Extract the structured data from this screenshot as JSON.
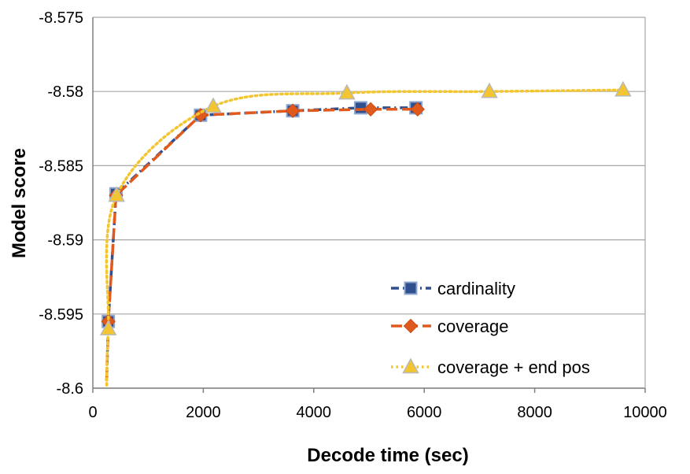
{
  "chart_data": {
    "type": "line",
    "title": "",
    "xlabel": "Decode time (sec)",
    "ylabel": "Model score",
    "xlim": [
      0,
      10000
    ],
    "ylim": [
      -8.6,
      -8.575
    ],
    "xticks": [
      0,
      2000,
      4000,
      6000,
      8000,
      10000
    ],
    "xtick_labels": [
      "0",
      "2000",
      "4000",
      "6000",
      "8000",
      "10000"
    ],
    "yticks": [
      -8.575,
      -8.58,
      -8.585,
      -8.59,
      -8.595,
      -8.6
    ],
    "ytick_labels": [
      "-8.575",
      "-8.58",
      "-8.585",
      "-8.59",
      "-8.595",
      "-8.6"
    ],
    "grid": "horizontal",
    "legend_position": "bottom-right",
    "series": [
      {
        "name": "cardinality",
        "color": "#2F4F8F",
        "marker": "square",
        "line_style": "dash-dot",
        "points": [
          [
            250,
            -8.5995
          ],
          [
            280,
            -8.5955
          ],
          [
            420,
            -8.5869
          ],
          [
            1950,
            -8.5816
          ],
          [
            3620,
            -8.5813
          ],
          [
            4850,
            -8.5811
          ],
          [
            5850,
            -8.5811
          ]
        ]
      },
      {
        "name": "coverage",
        "color": "#E05A1E",
        "marker": "diamond",
        "line_style": "long-dash",
        "points": [
          [
            250,
            -8.5995
          ],
          [
            280,
            -8.5955
          ],
          [
            420,
            -8.587
          ],
          [
            1950,
            -8.5816
          ],
          [
            3620,
            -8.5813
          ],
          [
            5030,
            -8.5812
          ],
          [
            5880,
            -8.5812
          ]
        ]
      },
      {
        "name": "coverage + end pos",
        "color": "#F2C531",
        "marker": "triangle",
        "line_style": "dotted",
        "points": [
          [
            250,
            -8.5998
          ],
          [
            280,
            -8.596
          ],
          [
            430,
            -8.587
          ],
          [
            2180,
            -8.581
          ],
          [
            4600,
            -8.5801
          ],
          [
            7180,
            -8.58
          ],
          [
            9600,
            -8.5799
          ]
        ]
      }
    ]
  }
}
